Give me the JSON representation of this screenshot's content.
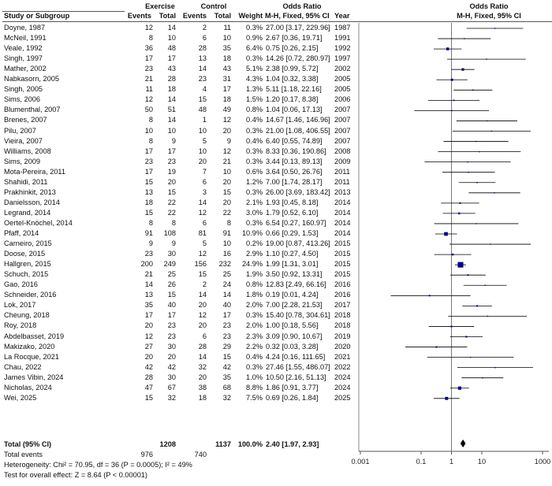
{
  "headers": {
    "study": "Study or Subgroup",
    "exp_group": "Exercise",
    "ctl_group": "Control",
    "events": "Events",
    "total": "Total",
    "weight": "Weight",
    "or_title": "Odds Ratio",
    "or_method": "M-H, Fixed, 95% CI",
    "year": "Year",
    "plot_title": "Odds Ratio",
    "plot_method": "M-H, Fixed, 95% CI"
  },
  "studies": [
    {
      "name": "Doyne, 1987",
      "e_ev": "12",
      "e_tot": "14",
      "c_ev": "2",
      "c_tot": "11",
      "weight": "0.3%",
      "ci": "27.00 [3.17, 229.96]",
      "year": "1987"
    },
    {
      "name": "McNeil, 1991",
      "e_ev": "8",
      "e_tot": "10",
      "c_ev": "6",
      "c_tot": "10",
      "weight": "0.9%",
      "ci": "2.67 [0.36, 19.71]",
      "year": "1991"
    },
    {
      "name": "Veale, 1992",
      "e_ev": "36",
      "e_tot": "48",
      "c_ev": "28",
      "c_tot": "35",
      "weight": "6.4%",
      "ci": "0.75 [0.26, 2.15]",
      "year": "1992"
    },
    {
      "name": "Singh, 1997",
      "e_ev": "17",
      "e_tot": "17",
      "c_ev": "13",
      "c_tot": "18",
      "weight": "0.3%",
      "ci": "14.26 [0.72, 280.97]",
      "year": "1997"
    },
    {
      "name": "Mather, 2002",
      "e_ev": "23",
      "e_tot": "43",
      "c_ev": "14",
      "c_tot": "43",
      "weight": "5.1%",
      "ci": "2.38 [0.99, 5.72]",
      "year": "2002"
    },
    {
      "name": "Nabkasorn, 2005",
      "e_ev": "21",
      "e_tot": "28",
      "c_ev": "23",
      "c_tot": "31",
      "weight": "4.3%",
      "ci": "1.04 [0.32, 3.38]",
      "year": "2005"
    },
    {
      "name": "Singh, 2005",
      "e_ev": "11",
      "e_tot": "18",
      "c_ev": "4",
      "c_tot": "17",
      "weight": "1.3%",
      "ci": "5.11 [1.18, 22.16]",
      "year": "2005"
    },
    {
      "name": "Sims, 2006",
      "e_ev": "12",
      "e_tot": "14",
      "c_ev": "15",
      "c_tot": "18",
      "weight": "1.5%",
      "ci": "1.20 [0.17, 8.38]",
      "year": "2006"
    },
    {
      "name": "Blumenthal, 2007",
      "e_ev": "50",
      "e_tot": "51",
      "c_ev": "48",
      "c_tot": "49",
      "weight": "0.8%",
      "ci": "1.04 [0.06, 17.13]",
      "year": "2007"
    },
    {
      "name": "Brenes, 2007",
      "e_ev": "8",
      "e_tot": "14",
      "c_ev": "1",
      "c_tot": "12",
      "weight": "0.4%",
      "ci": "14.67 [1.46, 146.96]",
      "year": "2007"
    },
    {
      "name": "Pilu, 2007",
      "e_ev": "10",
      "e_tot": "10",
      "c_ev": "10",
      "c_tot": "20",
      "weight": "0.3%",
      "ci": "21.00 [1.08, 406.55]",
      "year": "2007"
    },
    {
      "name": "Vieira, 2007",
      "e_ev": "8",
      "e_tot": "9",
      "c_ev": "5",
      "c_tot": "9",
      "weight": "0.4%",
      "ci": "6.40 [0.55, 74.89]",
      "year": "2007"
    },
    {
      "name": "Williams, 2008",
      "e_ev": "17",
      "e_tot": "17",
      "c_ev": "10",
      "c_tot": "12",
      "weight": "0.3%",
      "ci": "8.33 [0.36, 190.86]",
      "year": "2008"
    },
    {
      "name": "Sims, 2009",
      "e_ev": "23",
      "e_tot": "23",
      "c_ev": "20",
      "c_tot": "21",
      "weight": "0.3%",
      "ci": "3.44 [0.13, 89.13]",
      "year": "2009"
    },
    {
      "name": "Mota-Pereira, 2011",
      "e_ev": "17",
      "e_tot": "19",
      "c_ev": "7",
      "c_tot": "10",
      "weight": "0.6%",
      "ci": "3.64 [0.50, 26.76]",
      "year": "2011"
    },
    {
      "name": "Shahidi, 2011",
      "e_ev": "15",
      "e_tot": "20",
      "c_ev": "6",
      "c_tot": "20",
      "weight": "1.2%",
      "ci": "7.00 [1.74, 28.17]",
      "year": "2011"
    },
    {
      "name": "Prakhinkit, 2013",
      "e_ev": "13",
      "e_tot": "15",
      "c_ev": "3",
      "c_tot": "15",
      "weight": "0.3%",
      "ci": "26.00 [3.69, 183.42]",
      "year": "2013"
    },
    {
      "name": "Danielsson, 2014",
      "e_ev": "18",
      "e_tot": "22",
      "c_ev": "14",
      "c_tot": "20",
      "weight": "2.1%",
      "ci": "1.93 [0.45, 8.18]",
      "year": "2014"
    },
    {
      "name": "Legrand, 2014",
      "e_ev": "15",
      "e_tot": "22",
      "c_ev": "12",
      "c_tot": "22",
      "weight": "3.0%",
      "ci": "1.79 [0.52, 6.10]",
      "year": "2014"
    },
    {
      "name": "Oertel-Knöchel, 2014",
      "e_ev": "8",
      "e_tot": "8",
      "c_ev": "6",
      "c_tot": "8",
      "weight": "0.3%",
      "ci": "6.54 [0.27, 160.97]",
      "year": "2014"
    },
    {
      "name": "Pfaff, 2014",
      "e_ev": "91",
      "e_tot": "108",
      "c_ev": "81",
      "c_tot": "91",
      "weight": "10.9%",
      "ci": "0.66 [0.29, 1.53]",
      "year": "2014"
    },
    {
      "name": "Carneiro, 2015",
      "e_ev": "9",
      "e_tot": "9",
      "c_ev": "5",
      "c_tot": "10",
      "weight": "0.2%",
      "ci": "19.00 [0.87, 413.26]",
      "year": "2015"
    },
    {
      "name": "Doose, 2015",
      "e_ev": "23",
      "e_tot": "30",
      "c_ev": "12",
      "c_tot": "16",
      "weight": "2.9%",
      "ci": "1.10 [0.27, 4.50]",
      "year": "2015"
    },
    {
      "name": "Hallgren, 2015",
      "e_ev": "200",
      "e_tot": "249",
      "c_ev": "156",
      "c_tot": "232",
      "weight": "24.9%",
      "ci": "1.99 [1.31, 3.01]",
      "year": "2015"
    },
    {
      "name": "Schuch, 2015",
      "e_ev": "21",
      "e_tot": "25",
      "c_ev": "15",
      "c_tot": "25",
      "weight": "1.9%",
      "ci": "3.50 [0.92, 13.31]",
      "year": "2015"
    },
    {
      "name": "Gao, 2016",
      "e_ev": "14",
      "e_tot": "26",
      "c_ev": "2",
      "c_tot": "24",
      "weight": "0.8%",
      "ci": "12.83 [2.49, 66.16]",
      "year": "2016"
    },
    {
      "name": "Schneider, 2016",
      "e_ev": "13",
      "e_tot": "15",
      "c_ev": "14",
      "c_tot": "14",
      "weight": "1.8%",
      "ci": "0.19 [0.01, 4.24]",
      "year": "2016"
    },
    {
      "name": "Lok, 2017",
      "e_ev": "35",
      "e_tot": "40",
      "c_ev": "20",
      "c_tot": "40",
      "weight": "2.0%",
      "ci": "7.00 [2.28, 21.53]",
      "year": "2017"
    },
    {
      "name": "Cheung, 2018",
      "e_ev": "17",
      "e_tot": "17",
      "c_ev": "12",
      "c_tot": "17",
      "weight": "0.3%",
      "ci": "15.40 [0.78, 304.61]",
      "year": "2018"
    },
    {
      "name": "Roy, 2018",
      "e_ev": "20",
      "e_tot": "23",
      "c_ev": "20",
      "c_tot": "23",
      "weight": "2.0%",
      "ci": "1.00 [0.18, 5.56]",
      "year": "2018"
    },
    {
      "name": "Abdelbasset, 2019",
      "e_ev": "12",
      "e_tot": "23",
      "c_ev": "6",
      "c_tot": "23",
      "weight": "2.3%",
      "ci": "3.09 [0.90, 10.67]",
      "year": "2019"
    },
    {
      "name": "Makizako, 2020",
      "e_ev": "27",
      "e_tot": "30",
      "c_ev": "28",
      "c_tot": "29",
      "weight": "2.2%",
      "ci": "0.32 [0.03, 3.28]",
      "year": "2020"
    },
    {
      "name": "La Rocque, 2021",
      "e_ev": "20",
      "e_tot": "20",
      "c_ev": "14",
      "c_tot": "15",
      "weight": "0.4%",
      "ci": "4.24 [0.16, 111.65]",
      "year": "2021"
    },
    {
      "name": "Chau, 2022",
      "e_ev": "42",
      "e_tot": "42",
      "c_ev": "32",
      "c_tot": "42",
      "weight": "0.3%",
      "ci": "27.46 [1.55, 486.07]",
      "year": "2022"
    },
    {
      "name": "James Vibin, 2024",
      "e_ev": "28",
      "e_tot": "30",
      "c_ev": "20",
      "c_tot": "35",
      "weight": "1.0%",
      "ci": "10.50 [2.16, 51.13]",
      "year": "2024"
    },
    {
      "name": "Nicholas, 2024",
      "e_ev": "47",
      "e_tot": "67",
      "c_ev": "38",
      "c_tot": "68",
      "weight": "8.8%",
      "ci": "1.86 [0.91, 3.77]",
      "year": "2024"
    },
    {
      "name": "Wei, 2025",
      "e_ev": "15",
      "e_tot": "32",
      "c_ev": "18",
      "c_tot": "32",
      "weight": "7.5%",
      "ci": "0.69 [0.26, 1.84]",
      "year": "2025"
    }
  ],
  "total": {
    "label": "Total (95% CI)",
    "e_tot": "1208",
    "c_tot": "1137",
    "weight": "100.0%",
    "ci": "2.40 [1.97, 2.93]"
  },
  "total_events": {
    "label": "Total events",
    "e_ev": "976",
    "c_ev": "740"
  },
  "heterogeneity": "Heterogeneity: Chi² = 70.95, df = 36 (P = 0.0005); I² = 49%",
  "overall_effect": "Test for overall effect: Z = 8.64 (P < 0.00001)",
  "chart_data": {
    "type": "forest",
    "scale": "log",
    "xlim": [
      0.001,
      1000
    ],
    "ticks": [
      0.001,
      0.1,
      1,
      10,
      1000
    ],
    "tick_labels": [
      "0.001",
      "0.1",
      "1",
      "10",
      "1000"
    ],
    "reference_line": 1,
    "colors": {
      "square": "#00008b",
      "line": "#000000",
      "diamond": "#000000"
    },
    "studies": [
      {
        "or": 27.0,
        "lo": 3.17,
        "hi": 229.96,
        "w": 0.3
      },
      {
        "or": 2.67,
        "lo": 0.36,
        "hi": 19.71,
        "w": 0.9
      },
      {
        "or": 0.75,
        "lo": 0.26,
        "hi": 2.15,
        "w": 6.4
      },
      {
        "or": 14.26,
        "lo": 0.72,
        "hi": 280.97,
        "w": 0.3
      },
      {
        "or": 2.38,
        "lo": 0.99,
        "hi": 5.72,
        "w": 5.1
      },
      {
        "or": 1.04,
        "lo": 0.32,
        "hi": 3.38,
        "w": 4.3
      },
      {
        "or": 5.11,
        "lo": 1.18,
        "hi": 22.16,
        "w": 1.3
      },
      {
        "or": 1.2,
        "lo": 0.17,
        "hi": 8.38,
        "w": 1.5
      },
      {
        "or": 1.04,
        "lo": 0.06,
        "hi": 17.13,
        "w": 0.8
      },
      {
        "or": 14.67,
        "lo": 1.46,
        "hi": 146.96,
        "w": 0.4
      },
      {
        "or": 21.0,
        "lo": 1.08,
        "hi": 406.55,
        "w": 0.3
      },
      {
        "or": 6.4,
        "lo": 0.55,
        "hi": 74.89,
        "w": 0.4
      },
      {
        "or": 8.33,
        "lo": 0.36,
        "hi": 190.86,
        "w": 0.3
      },
      {
        "or": 3.44,
        "lo": 0.13,
        "hi": 89.13,
        "w": 0.3
      },
      {
        "or": 3.64,
        "lo": 0.5,
        "hi": 26.76,
        "w": 0.6
      },
      {
        "or": 7.0,
        "lo": 1.74,
        "hi": 28.17,
        "w": 1.2
      },
      {
        "or": 26.0,
        "lo": 3.69,
        "hi": 183.42,
        "w": 0.3
      },
      {
        "or": 1.93,
        "lo": 0.45,
        "hi": 8.18,
        "w": 2.1
      },
      {
        "or": 1.79,
        "lo": 0.52,
        "hi": 6.1,
        "w": 3.0
      },
      {
        "or": 6.54,
        "lo": 0.27,
        "hi": 160.97,
        "w": 0.3
      },
      {
        "or": 0.66,
        "lo": 0.29,
        "hi": 1.53,
        "w": 10.9
      },
      {
        "or": 19.0,
        "lo": 0.87,
        "hi": 413.26,
        "w": 0.2
      },
      {
        "or": 1.1,
        "lo": 0.27,
        "hi": 4.5,
        "w": 2.9
      },
      {
        "or": 1.99,
        "lo": 1.31,
        "hi": 3.01,
        "w": 24.9
      },
      {
        "or": 3.5,
        "lo": 0.92,
        "hi": 13.31,
        "w": 1.9
      },
      {
        "or": 12.83,
        "lo": 2.49,
        "hi": 66.16,
        "w": 0.8
      },
      {
        "or": 0.19,
        "lo": 0.01,
        "hi": 4.24,
        "w": 1.8
      },
      {
        "or": 7.0,
        "lo": 2.28,
        "hi": 21.53,
        "w": 2.0
      },
      {
        "or": 15.4,
        "lo": 0.78,
        "hi": 304.61,
        "w": 0.3
      },
      {
        "or": 1.0,
        "lo": 0.18,
        "hi": 5.56,
        "w": 2.0
      },
      {
        "or": 3.09,
        "lo": 0.9,
        "hi": 10.67,
        "w": 2.3
      },
      {
        "or": 0.32,
        "lo": 0.03,
        "hi": 3.28,
        "w": 2.2
      },
      {
        "or": 4.24,
        "lo": 0.16,
        "hi": 111.65,
        "w": 0.4
      },
      {
        "or": 27.46,
        "lo": 1.55,
        "hi": 486.07,
        "w": 0.3
      },
      {
        "or": 10.5,
        "lo": 2.16,
        "hi": 51.13,
        "w": 1.0
      },
      {
        "or": 1.86,
        "lo": 0.91,
        "hi": 3.77,
        "w": 8.8
      },
      {
        "or": 0.69,
        "lo": 0.26,
        "hi": 1.84,
        "w": 7.5
      }
    ],
    "pooled": {
      "or": 2.4,
      "lo": 1.97,
      "hi": 2.93
    }
  }
}
